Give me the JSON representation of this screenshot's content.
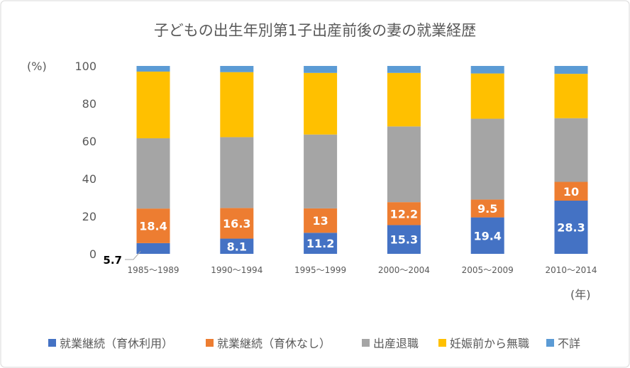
{
  "chart_data": {
    "type": "bar",
    "stacked": true,
    "title": "子どもの出生年別第1子出産前後の妻の就業経歴",
    "ylabel": "(%)",
    "xlabel": "(年)",
    "ylim": [
      0,
      100
    ],
    "yticks": [
      0,
      20,
      40,
      60,
      80,
      100
    ],
    "grid": false,
    "legend_position": "bottom",
    "categories": [
      "1985～1989",
      "1990～1994",
      "1995～1999",
      "2000～2004",
      "2005～2009",
      "2010～2014"
    ],
    "series": [
      {
        "name": "就業継続（育休利用）",
        "color": "#4472C4",
        "values": [
          5.7,
          8.1,
          11.2,
          15.3,
          19.4,
          28.3
        ],
        "labels": true
      },
      {
        "name": "就業継続（育休なし）",
        "color": "#ED7D31",
        "values": [
          18.4,
          16.3,
          13,
          12.2,
          9.5,
          10
        ],
        "labels": true
      },
      {
        "name": "出産退職",
        "color": "#A5A5A5",
        "values": [
          37.4,
          37.7,
          39.3,
          40.3,
          43.0,
          33.9
        ],
        "labels": false
      },
      {
        "name": "妊娠前から無職",
        "color": "#FFC000",
        "values": [
          35.5,
          34.6,
          32.8,
          28.5,
          24.1,
          23.6
        ],
        "labels": false
      },
      {
        "name": "不詳",
        "color": "#5B9BD5",
        "values": [
          3.1,
          3.4,
          3.8,
          3.7,
          4.1,
          4.2
        ],
        "labels": false
      }
    ]
  }
}
